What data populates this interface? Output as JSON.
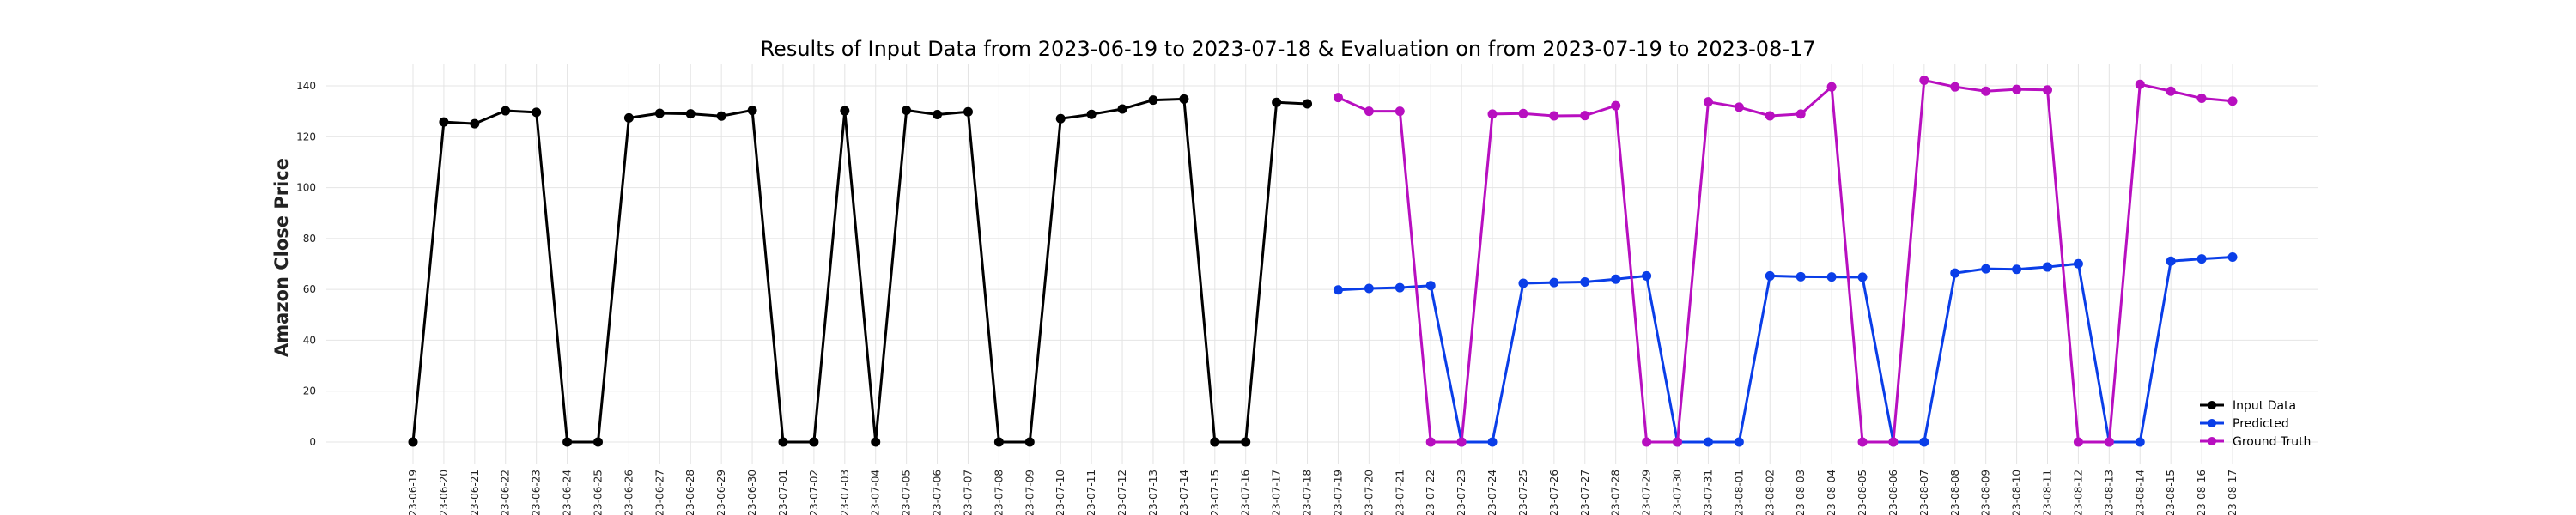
{
  "chart_data": {
    "type": "line",
    "title": "Results of Input Data from 2023-06-19 to 2023-07-18 & Evaluation on from 2023-07-19 to 2023-08-17",
    "xlabel": "",
    "ylabel": "Amazon Close Price",
    "ylim": [
      -14,
      150
    ],
    "yticks": [
      0,
      20,
      40,
      60,
      80,
      100,
      120,
      140
    ],
    "grid": true,
    "legend_position": "lower-right",
    "categories": [
      "2023-06-19",
      "2023-06-20",
      "2023-06-21",
      "2023-06-22",
      "2023-06-23",
      "2023-06-24",
      "2023-06-25",
      "2023-06-26",
      "2023-06-27",
      "2023-06-28",
      "2023-06-29",
      "2023-06-30",
      "2023-07-01",
      "2023-07-02",
      "2023-07-03",
      "2023-07-04",
      "2023-07-05",
      "2023-07-06",
      "2023-07-07",
      "2023-07-08",
      "2023-07-09",
      "2023-07-10",
      "2023-07-11",
      "2023-07-12",
      "2023-07-13",
      "2023-07-14",
      "2023-07-15",
      "2023-07-16",
      "2023-07-17",
      "2023-07-18",
      "2023-07-19",
      "2023-07-20",
      "2023-07-21",
      "2023-07-22",
      "2023-07-23",
      "2023-07-24",
      "2023-07-25",
      "2023-07-26",
      "2023-07-27",
      "2023-07-28",
      "2023-07-29",
      "2023-07-30",
      "2023-07-31",
      "2023-08-01",
      "2023-08-02",
      "2023-08-03",
      "2023-08-04",
      "2023-08-05",
      "2023-08-06",
      "2023-08-07",
      "2023-08-08",
      "2023-08-09",
      "2023-08-10",
      "2023-08-11",
      "2023-08-12",
      "2023-08-13",
      "2023-08-14",
      "2023-08-15",
      "2023-08-16",
      "2023-08-17"
    ],
    "tick_labels": [
      "-23-06-19",
      "-23-06-20",
      "-23-06-21",
      "-23-06-22",
      "-23-06-23",
      "-23-06-24",
      "-23-06-25",
      "-23-06-26",
      "-23-06-27",
      "-23-06-28",
      "-23-06-29",
      "-23-06-30",
      "-23-07-01",
      "-23-07-02",
      "-23-07-03",
      "-23-07-04",
      "-23-07-05",
      "-23-07-06",
      "-23-07-07",
      "-23-07-08",
      "-23-07-09",
      "-23-07-10",
      "-23-07-11",
      "-23-07-12",
      "-23-07-13",
      "-23-07-14",
      "-23-07-15",
      "-23-07-16",
      "-23-07-17",
      "-23-07-18",
      "-23-07-19",
      "-23-07-20",
      "-23-07-21",
      "-23-07-22",
      "-23-07-23",
      "-23-07-24",
      "-23-07-25",
      "-23-07-26",
      "-23-07-27",
      "-23-07-28",
      "-23-07-29",
      "-23-07-30",
      "-23-07-31",
      "-23-08-01",
      "-23-08-02",
      "-23-08-03",
      "-23-08-04",
      "-23-08-05",
      "-23-08-06",
      "-23-08-07",
      "-23-08-08",
      "-23-08-09",
      "-23-08-10",
      "-23-08-11",
      "-23-08-12",
      "-23-08-13",
      "-23-08-14",
      "-23-08-15",
      "-23-08-16",
      "-23-08-17"
    ],
    "series": [
      {
        "name": "Input Data",
        "color": "#000000",
        "x": [
          "2023-06-19",
          "2023-06-20",
          "2023-06-21",
          "2023-06-22",
          "2023-06-23",
          "2023-06-24",
          "2023-06-25",
          "2023-06-26",
          "2023-06-27",
          "2023-06-28",
          "2023-06-29",
          "2023-06-30",
          "2023-07-01",
          "2023-07-02",
          "2023-07-03",
          "2023-07-04",
          "2023-07-05",
          "2023-07-06",
          "2023-07-07",
          "2023-07-08",
          "2023-07-09",
          "2023-07-10",
          "2023-07-11",
          "2023-07-12",
          "2023-07-13",
          "2023-07-14",
          "2023-07-15",
          "2023-07-16",
          "2023-07-17",
          "2023-07-18"
        ],
        "values": [
          0,
          125.8,
          125.1,
          130.2,
          129.6,
          0,
          0,
          127.4,
          129.2,
          129.0,
          128.1,
          130.4,
          0,
          0,
          130.2,
          0,
          130.4,
          128.7,
          129.8,
          0,
          0,
          127.1,
          128.8,
          130.9,
          134.4,
          134.8,
          0,
          0,
          133.5,
          132.9
        ]
      },
      {
        "name": "Predicted",
        "color": "#0a3ee8",
        "x": [
          "2023-07-19",
          "2023-07-20",
          "2023-07-21",
          "2023-07-22",
          "2023-07-23",
          "2023-07-24",
          "2023-07-25",
          "2023-07-26",
          "2023-07-27",
          "2023-07-28",
          "2023-07-29",
          "2023-07-30",
          "2023-07-31",
          "2023-08-01",
          "2023-08-02",
          "2023-08-03",
          "2023-08-04",
          "2023-08-05",
          "2023-08-06",
          "2023-08-07",
          "2023-08-08",
          "2023-08-09",
          "2023-08-10",
          "2023-08-11",
          "2023-08-12",
          "2023-08-13",
          "2023-08-14",
          "2023-08-15",
          "2023-08-16",
          "2023-08-17"
        ],
        "values": [
          59.8,
          60.4,
          60.7,
          61.5,
          0,
          0,
          62.4,
          62.7,
          62.9,
          64.0,
          65.3,
          0,
          0,
          0,
          65.3,
          65.0,
          64.9,
          64.8,
          0,
          0,
          66.4,
          68.1,
          67.9,
          68.8,
          70.1,
          0,
          0,
          71.1,
          72.0,
          72.7
        ]
      },
      {
        "name": "Ground Truth",
        "color": "#b80fc0",
        "x": [
          "2023-07-19",
          "2023-07-20",
          "2023-07-21",
          "2023-07-22",
          "2023-07-23",
          "2023-07-24",
          "2023-07-25",
          "2023-07-26",
          "2023-07-27",
          "2023-07-28",
          "2023-07-29",
          "2023-07-30",
          "2023-07-31",
          "2023-08-01",
          "2023-08-02",
          "2023-08-03",
          "2023-08-04",
          "2023-08-05",
          "2023-08-06",
          "2023-08-07",
          "2023-08-08",
          "2023-08-09",
          "2023-08-10",
          "2023-08-11",
          "2023-08-12",
          "2023-08-13",
          "2023-08-14",
          "2023-08-15",
          "2023-08-16",
          "2023-08-17"
        ],
        "values": [
          135.4,
          130.0,
          130.0,
          0,
          0,
          128.9,
          129.1,
          128.2,
          128.3,
          132.2,
          0,
          0,
          133.7,
          131.6,
          128.2,
          128.9,
          139.6,
          0,
          0,
          142.2,
          139.6,
          137.9,
          138.6,
          138.4,
          0,
          0,
          140.6,
          137.9,
          135.1,
          134.0
        ]
      }
    ]
  }
}
